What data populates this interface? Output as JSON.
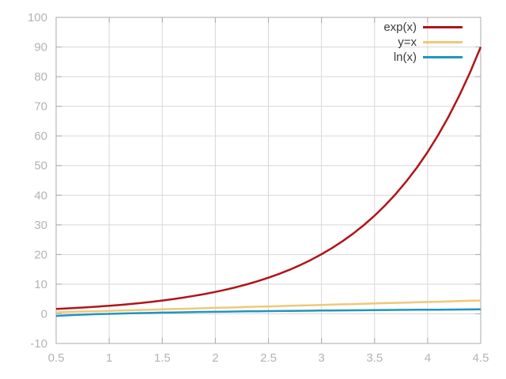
{
  "chart_data": {
    "type": "line",
    "title": "",
    "xlabel": "",
    "ylabel": "",
    "xlim": [
      0.5,
      4.5
    ],
    "ylim": [
      -10,
      100
    ],
    "x_ticks": [
      0.5,
      1,
      1.5,
      2,
      2.5,
      3,
      3.5,
      4,
      4.5
    ],
    "y_ticks": [
      -10,
      0,
      10,
      20,
      30,
      40,
      50,
      60,
      70,
      80,
      90,
      100
    ],
    "grid": true,
    "legend_position": "top-right",
    "x": [
      0.5,
      0.6,
      0.7,
      0.8,
      0.9,
      1.0,
      1.1,
      1.2,
      1.3,
      1.4,
      1.5,
      1.6,
      1.7,
      1.8,
      1.9,
      2.0,
      2.1,
      2.2,
      2.3,
      2.4,
      2.5,
      2.6,
      2.7,
      2.8,
      2.9,
      3.0,
      3.1,
      3.2,
      3.3,
      3.4,
      3.5,
      3.6,
      3.7,
      3.8,
      3.9,
      4.0,
      4.1,
      4.2,
      4.3,
      4.4,
      4.5
    ],
    "series": [
      {
        "name": "exp(x)",
        "color": "#b01419",
        "values": [
          1.649,
          1.822,
          2.014,
          2.226,
          2.46,
          2.718,
          3.004,
          3.32,
          3.669,
          4.055,
          4.482,
          4.953,
          5.474,
          6.05,
          6.686,
          7.389,
          8.166,
          9.025,
          9.974,
          11.023,
          12.182,
          13.464,
          14.88,
          16.445,
          18.174,
          20.086,
          22.198,
          24.533,
          27.113,
          29.964,
          33.115,
          36.598,
          40.447,
          44.701,
          49.402,
          54.598,
          60.34,
          66.686,
          73.7,
          81.451,
          90.017
        ]
      },
      {
        "name": "y=x",
        "color": "#efc878",
        "values": [
          0.5,
          0.6,
          0.7,
          0.8,
          0.9,
          1.0,
          1.1,
          1.2,
          1.3,
          1.4,
          1.5,
          1.6,
          1.7,
          1.8,
          1.9,
          2.0,
          2.1,
          2.2,
          2.3,
          2.4,
          2.5,
          2.6,
          2.7,
          2.8,
          2.9,
          3.0,
          3.1,
          3.2,
          3.3,
          3.4,
          3.5,
          3.6,
          3.7,
          3.8,
          3.9,
          4.0,
          4.1,
          4.2,
          4.3,
          4.4,
          4.5
        ]
      },
      {
        "name": "ln(x)",
        "color": "#2095bf",
        "values": [
          -0.693,
          -0.511,
          -0.357,
          -0.223,
          -0.105,
          0.0,
          0.095,
          0.182,
          0.262,
          0.336,
          0.405,
          0.47,
          0.531,
          0.588,
          0.642,
          0.693,
          0.742,
          0.788,
          0.833,
          0.875,
          0.916,
          0.956,
          0.993,
          1.03,
          1.065,
          1.099,
          1.131,
          1.163,
          1.194,
          1.224,
          1.253,
          1.281,
          1.308,
          1.335,
          1.361,
          1.386,
          1.411,
          1.435,
          1.459,
          1.482,
          1.504
        ]
      }
    ],
    "colors": {
      "grid": "#d8d8d8",
      "border": "#ababab",
      "tick_label": "#b3b3b3",
      "legend_text": "#3c3c3c",
      "background": "#ffffff"
    }
  }
}
